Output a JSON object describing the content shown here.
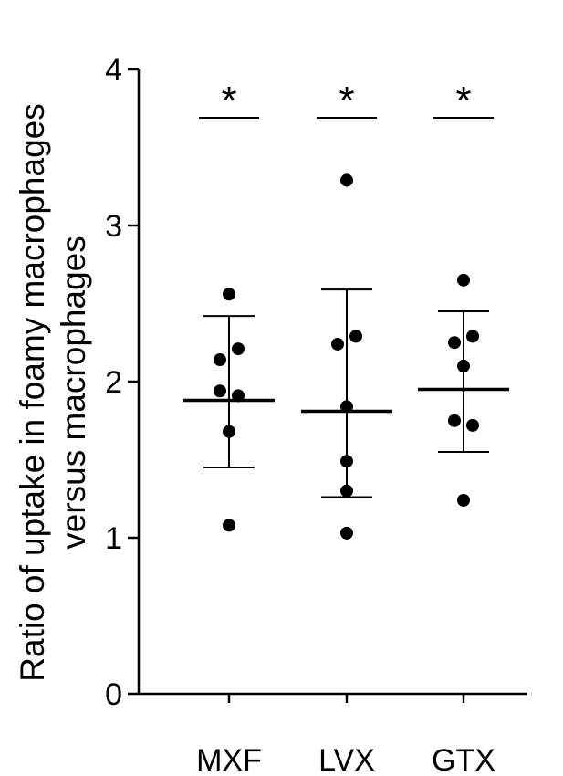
{
  "chart_data": {
    "type": "scatter",
    "ylabel_lines": [
      "Ratio of uptake in foamy macrophages",
      "versus macrophages"
    ],
    "ylim": [
      0,
      4
    ],
    "yticks": [
      "0",
      "1",
      "2",
      "3",
      "4"
    ],
    "categories": [
      "MXF",
      "LVX",
      "GTX"
    ],
    "groups": [
      {
        "name": "MXF",
        "points": [
          2.56,
          2.21,
          2.14,
          1.94,
          1.91,
          1.68,
          1.08
        ],
        "mean": 1.88,
        "error_upper": 2.42,
        "error_lower": 1.45,
        "significance": "*"
      },
      {
        "name": "LVX",
        "points": [
          3.29,
          2.29,
          2.24,
          1.84,
          1.49,
          1.3,
          1.03
        ],
        "mean": 1.81,
        "error_upper": 2.59,
        "error_lower": 1.26,
        "significance": "*"
      },
      {
        "name": "GTX",
        "points": [
          2.65,
          2.29,
          2.25,
          2.1,
          1.75,
          1.72,
          1.24
        ],
        "mean": 1.95,
        "error_upper": 2.45,
        "error_lower": 1.55,
        "significance": "*"
      }
    ],
    "grid": false,
    "legend": "none"
  }
}
